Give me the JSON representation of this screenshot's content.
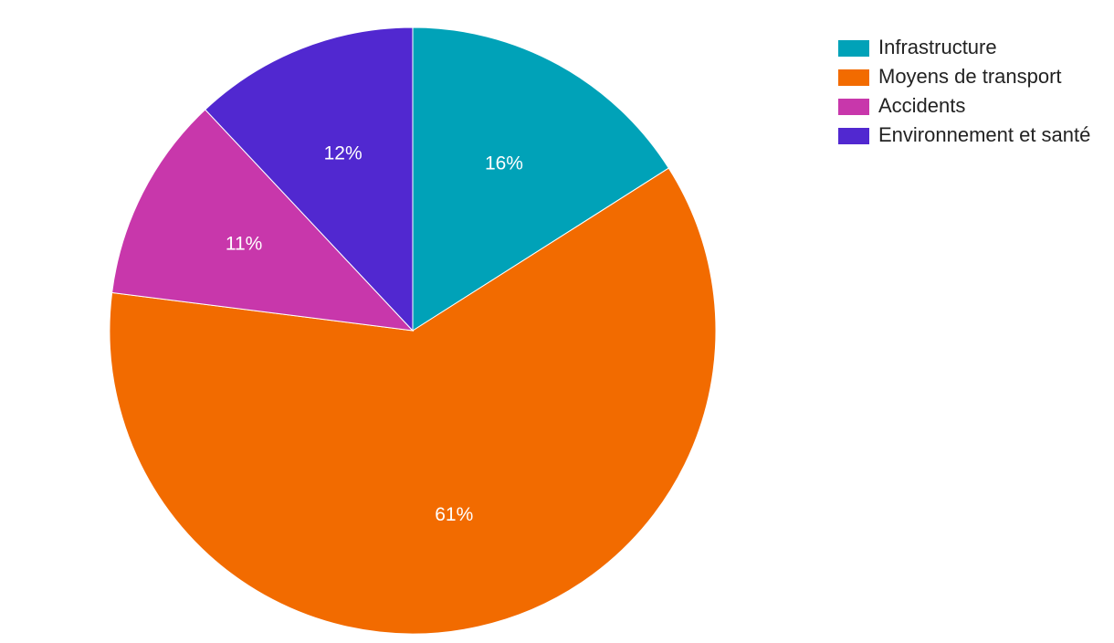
{
  "chart_data": {
    "type": "pie",
    "categories": [
      "Infrastructure",
      "Moyens de transport",
      "Accidents",
      "Environnement et santé"
    ],
    "values": [
      16,
      61,
      11,
      12
    ],
    "value_labels": [
      "16%",
      "61%",
      "11%",
      "12%"
    ],
    "colors": [
      "#00a2b8",
      "#f26b00",
      "#c837ab",
      "#5128d0"
    ],
    "legend": "top-right"
  }
}
